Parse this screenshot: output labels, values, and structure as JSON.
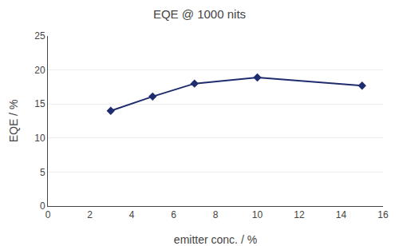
{
  "chart_data": {
    "type": "line",
    "title": "EQE @ 1000 nits",
    "xlabel": "emitter conc. / %",
    "ylabel": "EQE / %",
    "x": [
      3,
      5,
      7,
      10,
      15
    ],
    "values": [
      14.0,
      16.1,
      18.0,
      18.9,
      17.7
    ],
    "color": "#1f2d6e",
    "marker": "diamond",
    "xlim": [
      0,
      16
    ],
    "ylim": [
      0,
      25
    ],
    "xticks": [
      0,
      2,
      4,
      6,
      8,
      10,
      12,
      14,
      16
    ],
    "yticks": [
      0,
      5,
      10,
      15,
      20,
      25
    ],
    "grid": "y"
  }
}
